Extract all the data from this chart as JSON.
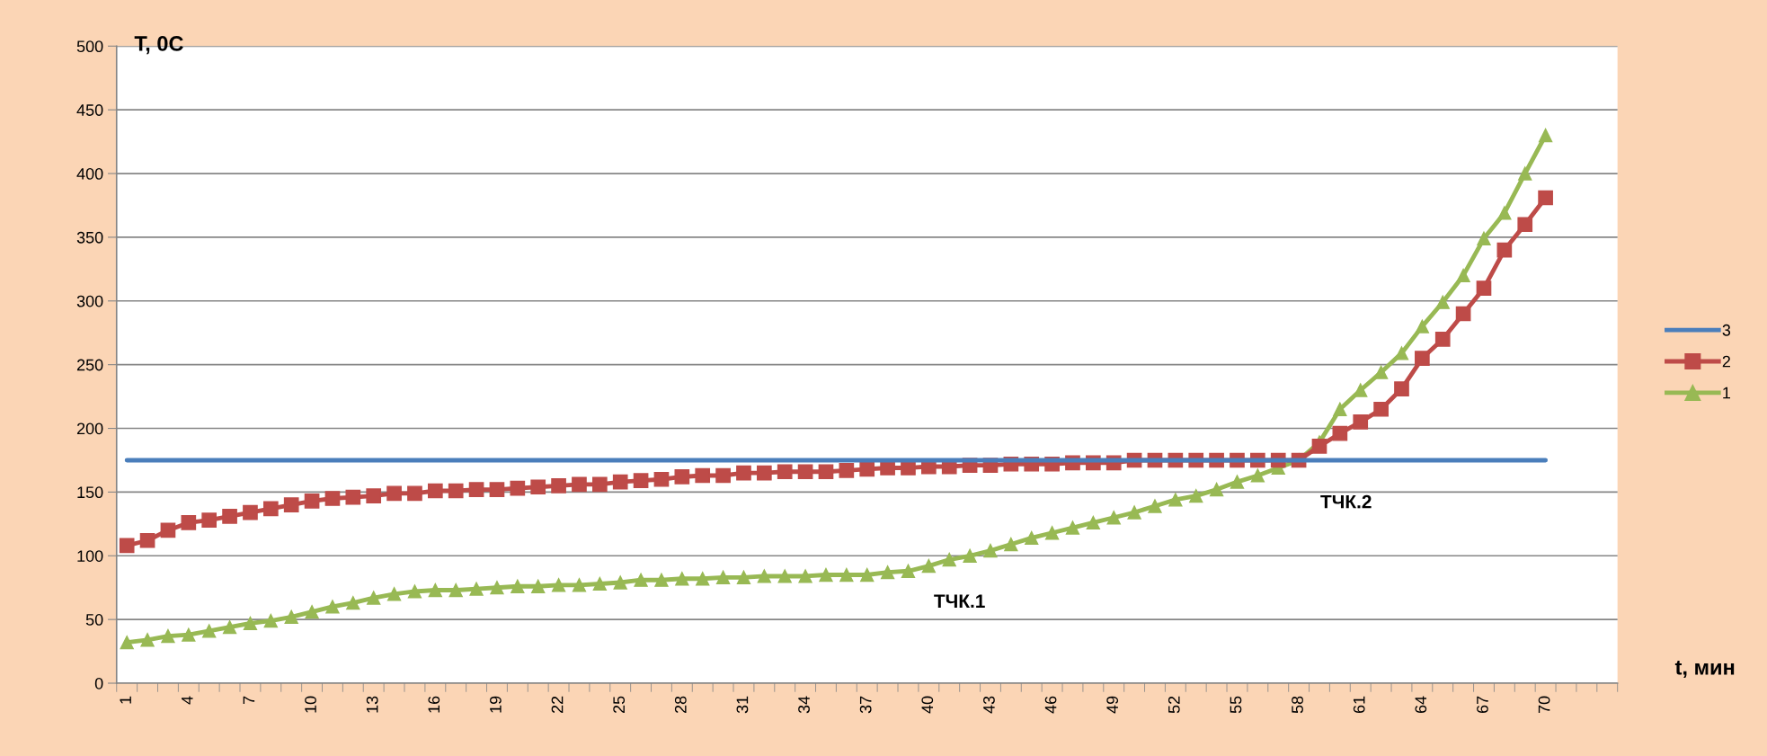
{
  "chart_data": {
    "type": "line",
    "ylabel": "T, 0C",
    "xlabel": "t, мин",
    "categories": [
      "1",
      null,
      null,
      "4",
      null,
      null,
      "7",
      null,
      null,
      "10",
      null,
      null,
      "13",
      null,
      null,
      "16",
      null,
      null,
      "19",
      null,
      null,
      "22",
      null,
      null,
      "25",
      null,
      null,
      "28",
      null,
      null,
      "31",
      null,
      null,
      "34",
      null,
      null,
      "37",
      null,
      null,
      "40",
      null,
      null,
      "43",
      null,
      null,
      "46",
      null,
      null,
      "49",
      null,
      null,
      "52",
      null,
      null,
      "55",
      null,
      null,
      "58",
      null,
      null,
      "61",
      null,
      null,
      "64",
      null,
      null,
      "67",
      null,
      null,
      "70",
      null,
      null,
      null
    ],
    "series": [
      {
        "name": "3",
        "color": "#4a7ebb",
        "marker": "none",
        "values": [
          175,
          175,
          175,
          175,
          175,
          175,
          175,
          175,
          175,
          175,
          175,
          175,
          175,
          175,
          175,
          175,
          175,
          175,
          175,
          175,
          175,
          175,
          175,
          175,
          175,
          175,
          175,
          175,
          175,
          175,
          175,
          175,
          175,
          175,
          175,
          175,
          175,
          175,
          175,
          175,
          175,
          175,
          175,
          175,
          175,
          175,
          175,
          175,
          175,
          175,
          175,
          175,
          175,
          175,
          175,
          175,
          175,
          175,
          175,
          175,
          175,
          175,
          175,
          175,
          175,
          175,
          175,
          175,
          175,
          175,
          null,
          null,
          null
        ]
      },
      {
        "name": "2",
        "color": "#be4b48",
        "marker": "square",
        "values": [
          108,
          112,
          120,
          126,
          128,
          131,
          134,
          137,
          140,
          143,
          145,
          146,
          147,
          149,
          149,
          151,
          151,
          152,
          152,
          153,
          154,
          155,
          156,
          156,
          158,
          159,
          160,
          162,
          163,
          163,
          165,
          165,
          166,
          166,
          166,
          167,
          168,
          169,
          169,
          170,
          170,
          171,
          171,
          172,
          172,
          172,
          173,
          173,
          173,
          175,
          175,
          175,
          175,
          175,
          175,
          175,
          175,
          175,
          186,
          196,
          205,
          215,
          231,
          255,
          270,
          290,
          310,
          340,
          360,
          381,
          null,
          null,
          null
        ]
      },
      {
        "name": "1",
        "color": "#98b954",
        "marker": "triangle",
        "values": [
          32,
          34,
          37,
          38,
          41,
          44,
          47,
          49,
          52,
          56,
          60,
          63,
          67,
          70,
          72,
          73,
          73,
          74,
          75,
          76,
          76,
          77,
          77,
          78,
          79,
          81,
          81,
          82,
          82,
          83,
          83,
          84,
          84,
          84,
          85,
          85,
          85,
          87,
          88,
          92,
          97,
          100,
          104,
          109,
          114,
          118,
          122,
          126,
          130,
          134,
          139,
          144,
          147,
          152,
          158,
          163,
          169,
          175,
          189,
          215,
          230,
          244,
          259,
          280,
          299,
          320,
          349,
          369,
          400,
          430,
          null,
          null,
          null
        ]
      }
    ],
    "ylim": [
      0,
      500
    ],
    "yticks": [
      0,
      50,
      100,
      150,
      200,
      250,
      300,
      350,
      400,
      450,
      500
    ],
    "grid": "y",
    "legend": "right",
    "line_style": "solid",
    "annotations": [
      "ТЧК.1",
      "ТЧК.2"
    ]
  }
}
